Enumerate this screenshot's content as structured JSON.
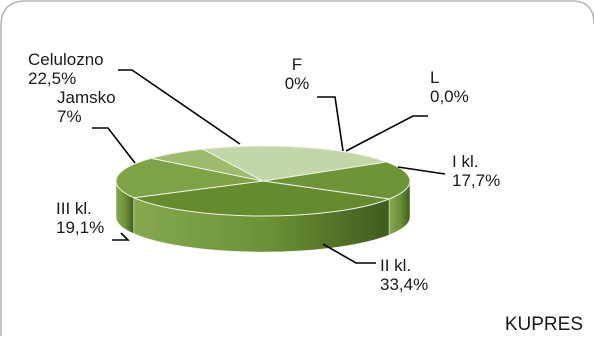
{
  "chart_data": {
    "type": "pie",
    "style": "3d",
    "title": "",
    "corner_text": "KUPRES",
    "slices": [
      {
        "name": "I kl.",
        "value": 17.7,
        "value_label": "17,7%",
        "color": "#6e9438"
      },
      {
        "name": "II kl.",
        "value": 33.4,
        "value_label": "33,4%",
        "color": "#648c2f"
      },
      {
        "name": "III kl.",
        "value": 19.1,
        "value_label": "19,1%",
        "color": "#7ea346"
      },
      {
        "name": "Jamsko",
        "value": 7,
        "value_label": "7%",
        "color": "#9dbb6c"
      },
      {
        "name": "Celulozno",
        "value": 22.5,
        "value_label": "22,5%",
        "color": "#c3d6a7"
      },
      {
        "name": "F",
        "value": 0,
        "value_label": "0%",
        "color": "#5a7f2a"
      },
      {
        "name": "L",
        "value": 0,
        "value_label": "0,0%",
        "color": "#4f7325"
      }
    ],
    "colors": {
      "border": "#b5b5b5",
      "leader": "#000000",
      "side_dark": "#3f5b1e",
      "side_light": "#86a94f"
    }
  }
}
